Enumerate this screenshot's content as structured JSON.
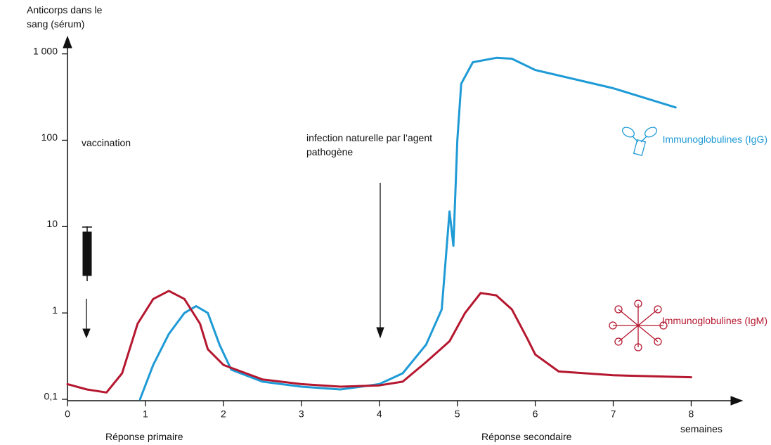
{
  "chart_data": {
    "type": "line",
    "y_label": "Anticorps dans le sang (sérum)",
    "x_label": "semaines",
    "annotations": [
      "vaccination",
      "infection naturelle par l’agent pathogène",
      "Réponse primaire",
      "Réponse secondaire"
    ],
    "xlim": [
      0,
      8.6
    ],
    "xticks": [
      0,
      1,
      2,
      3,
      4,
      5,
      6,
      7,
      8
    ],
    "ylim": [
      0.1,
      1500
    ],
    "log_y": true,
    "yticks": [
      {
        "value": 0.1,
        "label": "0,1"
      },
      1,
      10,
      100,
      {
        "value": 1000,
        "label": "1 000"
      }
    ],
    "series": [
      {
        "name": "Immunoglobulines (IgG)",
        "color": "#1e9ad6",
        "x": [
          0.93,
          1.1,
          1.3,
          1.5,
          1.65,
          1.8,
          1.95,
          2.1,
          2.5,
          3,
          3.5,
          4,
          4.3,
          4.6,
          4.8,
          4.9,
          4.95,
          5.0,
          5.05,
          5.2,
          5.5,
          5.7,
          6,
          7,
          7.8
        ],
        "values": [
          0.1,
          0.25,
          0.57,
          1.0,
          1.2,
          1.0,
          0.43,
          0.22,
          0.16,
          0.14,
          0.13,
          0.15,
          0.2,
          0.43,
          1.1,
          15,
          6,
          100,
          450,
          800,
          900,
          880,
          650,
          400,
          240
        ]
      },
      {
        "name": "Immunoglobulines (IgM)",
        "color": "#b5172f",
        "x": [
          0,
          0.25,
          0.5,
          0.7,
          0.9,
          1.1,
          1.3,
          1.5,
          1.7,
          1.8,
          2.0,
          2.5,
          3,
          3.5,
          4,
          4.3,
          4.6,
          4.9,
          5.1,
          5.3,
          5.5,
          5.7,
          5.9,
          6.0,
          6.3,
          7,
          8
        ],
        "values": [
          0.15,
          0.13,
          0.12,
          0.2,
          0.75,
          1.45,
          1.8,
          1.45,
          0.75,
          0.38,
          0.25,
          0.17,
          0.15,
          0.14,
          0.145,
          0.16,
          0.27,
          0.47,
          1.0,
          1.7,
          1.6,
          1.1,
          0.5,
          0.33,
          0.21,
          0.19,
          0.18
        ]
      }
    ]
  }
}
